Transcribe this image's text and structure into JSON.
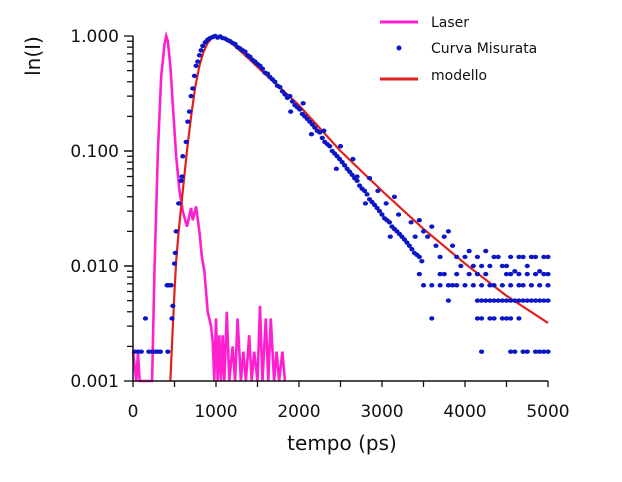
{
  "chart_data": {
    "type": "scatter",
    "title": "",
    "xlabel": "tempo (ps)",
    "ylabel": "ln(I)",
    "xlim": [
      0,
      5000
    ],
    "ylim": [
      0.001,
      1.0
    ],
    "yscale": "log",
    "grid": false,
    "legend_position": "top-right",
    "x_ticks": [
      0,
      1000,
      2000,
      3000,
      4000,
      5000
    ],
    "x_tick_labels": [
      "0",
      "1000",
      "2000",
      "3000",
      "4000",
      "5000"
    ],
    "y_ticks": [
      0.001,
      0.01,
      0.1,
      1.0
    ],
    "y_tick_labels": [
      "0.001",
      "0.010",
      "0.100",
      "1.000"
    ],
    "colors": {
      "laser": "#ff1fcf",
      "measured": "#0a16c8",
      "model": "#e0201a",
      "axis": "#111111"
    },
    "series": [
      {
        "name": "Laser",
        "kind": "line",
        "x": [
          0,
          40,
          60,
          80,
          100,
          200,
          230,
          260,
          300,
          340,
          380,
          400,
          420,
          450,
          480,
          520,
          560,
          600,
          650,
          700,
          720,
          760,
          800,
          830,
          860,
          880,
          900,
          940,
          960,
          980,
          1000,
          1020,
          1040,
          1060,
          1080,
          1100,
          1130,
          1160,
          1200,
          1230,
          1260,
          1300,
          1330,
          1360,
          1400,
          1430,
          1460,
          1500,
          1530,
          1560,
          1600,
          1630,
          1660,
          1700,
          1730,
          1760,
          1800,
          1830
        ],
        "y": [
          0.0018,
          0.001,
          0.0018,
          0.001,
          0.001,
          0.001,
          0.001,
          0.01,
          0.1,
          0.45,
          0.85,
          1.0,
          0.9,
          0.55,
          0.25,
          0.09,
          0.045,
          0.03,
          0.022,
          0.032,
          0.025,
          0.033,
          0.02,
          0.012,
          0.009,
          0.006,
          0.004,
          0.003,
          0.0022,
          0.001,
          0.0035,
          0.001,
          0.0025,
          0.001,
          0.0025,
          0.001,
          0.004,
          0.001,
          0.002,
          0.001,
          0.0035,
          0.001,
          0.0018,
          0.001,
          0.0025,
          0.001,
          0.0018,
          0.001,
          0.0045,
          0.001,
          0.0035,
          0.001,
          0.0035,
          0.001,
          0.0018,
          0.001,
          0.0018,
          0.001
        ]
      },
      {
        "name": "Curva Misurata",
        "kind": "scatter",
        "points": [
          [
            20,
            0.0018
          ],
          [
            60,
            0.0018
          ],
          [
            100,
            0.0018
          ],
          [
            150,
            0.0035
          ],
          [
            190,
            0.0018
          ],
          [
            230,
            0.0018
          ],
          [
            270,
            0.0018
          ],
          [
            300,
            0.0018
          ],
          [
            330,
            0.0018
          ],
          [
            420,
            0.0018
          ],
          [
            410,
            0.0068
          ],
          [
            430,
            0.0068
          ],
          [
            460,
            0.0068
          ],
          [
            480,
            0.0045
          ],
          [
            470,
            0.0035
          ],
          [
            500,
            0.0105
          ],
          [
            510,
            0.013
          ],
          [
            520,
            0.02
          ],
          [
            550,
            0.035
          ],
          [
            580,
            0.055
          ],
          [
            590,
            0.06
          ],
          [
            600,
            0.09
          ],
          [
            640,
            0.12
          ],
          [
            660,
            0.18
          ],
          [
            680,
            0.22
          ],
          [
            700,
            0.3
          ],
          [
            720,
            0.35
          ],
          [
            740,
            0.45
          ],
          [
            760,
            0.55
          ],
          [
            780,
            0.6
          ],
          [
            800,
            0.68
          ],
          [
            820,
            0.75
          ],
          [
            840,
            0.82
          ],
          [
            870,
            0.88
          ],
          [
            900,
            0.93
          ],
          [
            930,
            0.96
          ],
          [
            960,
            0.98
          ],
          [
            990,
            1.0
          ],
          [
            1020,
            0.97
          ],
          [
            1050,
            0.99
          ],
          [
            1080,
            0.96
          ],
          [
            1110,
            0.95
          ],
          [
            1140,
            0.92
          ],
          [
            1170,
            0.9
          ],
          [
            1200,
            0.87
          ],
          [
            1230,
            0.85
          ],
          [
            1260,
            0.8
          ],
          [
            1290,
            0.78
          ],
          [
            1320,
            0.75
          ],
          [
            1350,
            0.73
          ],
          [
            1380,
            0.68
          ],
          [
            1410,
            0.66
          ],
          [
            1440,
            0.62
          ],
          [
            1470,
            0.6
          ],
          [
            1500,
            0.57
          ],
          [
            1530,
            0.55
          ],
          [
            1560,
            0.52
          ],
          [
            1590,
            0.48
          ],
          [
            1620,
            0.47
          ],
          [
            1650,
            0.44
          ],
          [
            1680,
            0.42
          ],
          [
            1710,
            0.4
          ],
          [
            1740,
            0.37
          ],
          [
            1770,
            0.36
          ],
          [
            1800,
            0.33
          ],
          [
            1830,
            0.31
          ],
          [
            1860,
            0.29
          ],
          [
            1890,
            0.3
          ],
          [
            1920,
            0.27
          ],
          [
            1950,
            0.25
          ],
          [
            1980,
            0.24
          ],
          [
            2010,
            0.23
          ],
          [
            2040,
            0.21
          ],
          [
            2070,
            0.2
          ],
          [
            2100,
            0.19
          ],
          [
            2130,
            0.18
          ],
          [
            2160,
            0.17
          ],
          [
            2190,
            0.16
          ],
          [
            2220,
            0.15
          ],
          [
            2250,
            0.145
          ],
          [
            2280,
            0.13
          ],
          [
            2310,
            0.12
          ],
          [
            2340,
            0.115
          ],
          [
            2370,
            0.11
          ],
          [
            2400,
            0.1
          ],
          [
            2430,
            0.095
          ],
          [
            2460,
            0.09
          ],
          [
            2490,
            0.085
          ],
          [
            2520,
            0.08
          ],
          [
            2550,
            0.075
          ],
          [
            2580,
            0.07
          ],
          [
            2610,
            0.066
          ],
          [
            2640,
            0.062
          ],
          [
            2670,
            0.058
          ],
          [
            2700,
            0.055
          ],
          [
            2730,
            0.05
          ],
          [
            2760,
            0.047
          ],
          [
            2790,
            0.045
          ],
          [
            2820,
            0.042
          ],
          [
            2850,
            0.038
          ],
          [
            2880,
            0.036
          ],
          [
            2910,
            0.034
          ],
          [
            2940,
            0.032
          ],
          [
            2970,
            0.03
          ],
          [
            3000,
            0.028
          ],
          [
            3030,
            0.026
          ],
          [
            3060,
            0.025
          ],
          [
            3090,
            0.024
          ],
          [
            3120,
            0.022
          ],
          [
            3150,
            0.021
          ],
          [
            3180,
            0.02
          ],
          [
            3210,
            0.019
          ],
          [
            3240,
            0.018
          ],
          [
            3270,
            0.017
          ],
          [
            3300,
            0.016
          ],
          [
            3330,
            0.015
          ],
          [
            3360,
            0.014
          ],
          [
            3390,
            0.013
          ],
          [
            3420,
            0.0125
          ],
          [
            3450,
            0.012
          ],
          [
            3480,
            0.011
          ],
          [
            1900,
            0.22
          ],
          [
            2050,
            0.26
          ],
          [
            2150,
            0.14
          ],
          [
            2300,
            0.15
          ],
          [
            2450,
            0.07
          ],
          [
            2500,
            0.11
          ],
          [
            2650,
            0.085
          ],
          [
            2700,
            0.06
          ],
          [
            2800,
            0.035
          ],
          [
            2850,
            0.058
          ],
          [
            2950,
            0.045
          ],
          [
            3050,
            0.035
          ],
          [
            3100,
            0.018
          ],
          [
            3150,
            0.04
          ],
          [
            3200,
            0.028
          ],
          [
            3350,
            0.024
          ],
          [
            3400,
            0.018
          ],
          [
            3450,
            0.025
          ],
          [
            3500,
            0.02
          ],
          [
            3550,
            0.018
          ],
          [
            3600,
            0.022
          ],
          [
            3650,
            0.015
          ],
          [
            3700,
            0.012
          ],
          [
            3750,
            0.018
          ],
          [
            3800,
            0.02
          ],
          [
            3850,
            0.015
          ],
          [
            3900,
            0.012
          ],
          [
            3950,
            0.01
          ],
          [
            4000,
            0.012
          ],
          [
            4050,
            0.0135
          ],
          [
            4100,
            0.01
          ],
          [
            4150,
            0.012
          ],
          [
            4200,
            0.01
          ],
          [
            4250,
            0.0135
          ],
          [
            4300,
            0.01
          ],
          [
            4350,
            0.012
          ],
          [
            4400,
            0.012
          ],
          [
            4450,
            0.01
          ],
          [
            4500,
            0.01
          ],
          [
            4550,
            0.012
          ],
          [
            4600,
            0.009
          ],
          [
            4650,
            0.012
          ],
          [
            4700,
            0.012
          ],
          [
            4750,
            0.01
          ],
          [
            4800,
            0.012
          ],
          [
            4850,
            0.012
          ],
          [
            4900,
            0.009
          ],
          [
            4950,
            0.012
          ],
          [
            5000,
            0.012
          ],
          [
            3500,
            0.0068
          ],
          [
            3600,
            0.0068
          ],
          [
            3700,
            0.0068
          ],
          [
            3800,
            0.0068
          ],
          [
            3850,
            0.0068
          ],
          [
            3900,
            0.0068
          ],
          [
            4000,
            0.0068
          ],
          [
            4100,
            0.0068
          ],
          [
            4200,
            0.0068
          ],
          [
            4300,
            0.0068
          ],
          [
            4350,
            0.0068
          ],
          [
            4450,
            0.0068
          ],
          [
            4550,
            0.0068
          ],
          [
            4650,
            0.0068
          ],
          [
            4700,
            0.0068
          ],
          [
            4800,
            0.0068
          ],
          [
            4900,
            0.0068
          ],
          [
            5000,
            0.0068
          ],
          [
            3450,
            0.0085
          ],
          [
            3700,
            0.0085
          ],
          [
            3750,
            0.0085
          ],
          [
            3900,
            0.0085
          ],
          [
            4050,
            0.0085
          ],
          [
            4150,
            0.0085
          ],
          [
            4250,
            0.0085
          ],
          [
            4500,
            0.0085
          ],
          [
            4550,
            0.0085
          ],
          [
            4650,
            0.0085
          ],
          [
            4750,
            0.0085
          ],
          [
            4850,
            0.0085
          ],
          [
            4950,
            0.0085
          ],
          [
            5000,
            0.0085
          ],
          [
            3800,
            0.005
          ],
          [
            4150,
            0.005
          ],
          [
            4200,
            0.005
          ],
          [
            4250,
            0.005
          ],
          [
            4300,
            0.005
          ],
          [
            4350,
            0.005
          ],
          [
            4400,
            0.005
          ],
          [
            4450,
            0.005
          ],
          [
            4500,
            0.005
          ],
          [
            4550,
            0.005
          ],
          [
            4600,
            0.005
          ],
          [
            4650,
            0.005
          ],
          [
            4700,
            0.005
          ],
          [
            4750,
            0.005
          ],
          [
            4800,
            0.005
          ],
          [
            4850,
            0.005
          ],
          [
            4900,
            0.005
          ],
          [
            4950,
            0.005
          ],
          [
            5000,
            0.005
          ],
          [
            3600,
            0.0035
          ],
          [
            4150,
            0.0035
          ],
          [
            4200,
            0.0035
          ],
          [
            4300,
            0.0035
          ],
          [
            4350,
            0.0035
          ],
          [
            4450,
            0.0035
          ],
          [
            4500,
            0.0035
          ],
          [
            4550,
            0.0035
          ],
          [
            4650,
            0.0035
          ],
          [
            4200,
            0.0018
          ],
          [
            4550,
            0.0018
          ],
          [
            4600,
            0.0018
          ],
          [
            4700,
            0.0018
          ],
          [
            4750,
            0.0018
          ],
          [
            4850,
            0.0018
          ],
          [
            4900,
            0.0018
          ],
          [
            4950,
            0.0018
          ],
          [
            5000,
            0.0018
          ]
        ]
      },
      {
        "name": "modello",
        "kind": "line",
        "x": [
          450,
          480,
          500,
          520,
          550,
          600,
          650,
          700,
          750,
          800,
          850,
          900,
          950,
          1000,
          1100,
          1200,
          1400,
          1600,
          1800,
          2000,
          2500,
          3000,
          3500,
          4000,
          4500,
          5000
        ],
        "y": [
          0.001,
          0.003,
          0.006,
          0.011,
          0.02,
          0.045,
          0.1,
          0.2,
          0.36,
          0.55,
          0.73,
          0.87,
          0.96,
          1.0,
          0.95,
          0.85,
          0.63,
          0.46,
          0.34,
          0.25,
          0.1,
          0.045,
          0.021,
          0.0105,
          0.0055,
          0.0032
        ]
      }
    ]
  }
}
